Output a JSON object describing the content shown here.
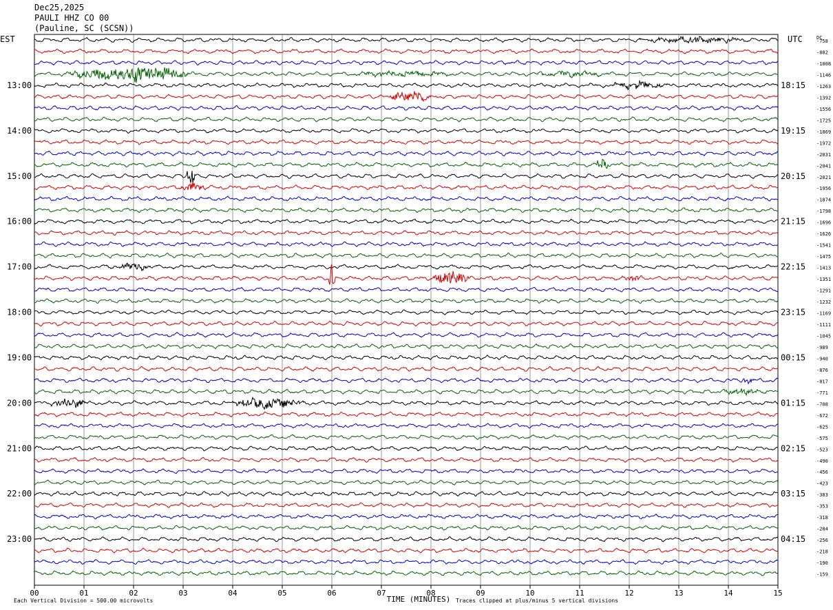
{
  "header": {
    "date": "Dec25,2025",
    "station": "PAULI HHZ CO 00",
    "location": "(Pauline, SC (SCSN))"
  },
  "colors": {
    "trace_cycle": [
      "#000000",
      "#d40000",
      "#0000c8",
      "#006400"
    ],
    "grid": "#000000",
    "background": "#ffffff"
  },
  "chart_data": {
    "type": "line",
    "title": "PAULI HHZ CO 00",
    "xlabel": "TIME (MINUTES)",
    "x_range": [
      0,
      15
    ],
    "x_ticks": [
      "00",
      "01",
      "02",
      "03",
      "04",
      "05",
      "06",
      "07",
      "08",
      "09",
      "10",
      "11",
      "12",
      "13",
      "14",
      "15"
    ],
    "left_axis_label": "EST",
    "right_axis_label": "UTC",
    "dc_label": "DC",
    "left_hour_labels": [
      "13:00",
      "14:00",
      "15:00",
      "16:00",
      "17:00",
      "18:00",
      "19:00",
      "20:00",
      "21:00",
      "22:00",
      "23:00"
    ],
    "right_hour_labels": [
      "18:15",
      "19:15",
      "20:15",
      "21:15",
      "22:15",
      "23:15",
      "00:15",
      "01:15",
      "02:15",
      "03:15",
      "04:15"
    ],
    "dc_offsets": [
      "-758",
      "-882",
      "-1008",
      "-1146",
      "-1263",
      "-1392",
      "-1556",
      "-1725",
      "-1869",
      "-1972",
      "-2031",
      "-2041",
      "-2021",
      "-1956",
      "-1874",
      "-1798",
      "-1696",
      "-1626",
      "-1541",
      "-1475",
      "-1413",
      "-1351",
      "-1291",
      "-1232",
      "-1169",
      "-1111",
      "-1045",
      "-989",
      "-940",
      "-876",
      "-817",
      "-771",
      "-708",
      "-672",
      "-625",
      "-575",
      "-523",
      "-490",
      "-456",
      "-423",
      "-383",
      "-353",
      "-318",
      "-284",
      "-256",
      "-218",
      "-190",
      "-159"
    ],
    "footer_left": "Each Vertical Division =  500.00 microvolts",
    "footer_right": "Traces clipped at plus/minus 5 vertical divisions",
    "traces_count": 48,
    "minutes_per_trace": 15,
    "events": [
      {
        "trace": 0,
        "minute": 13.3,
        "amp": 0.6,
        "dur": 1.2
      },
      {
        "trace": 3,
        "minute": 1.9,
        "amp": 1.4,
        "dur": 1.4
      },
      {
        "trace": 3,
        "minute": 2.3,
        "amp": 1.0,
        "dur": 0.8
      },
      {
        "trace": 3,
        "minute": 7.5,
        "amp": 0.5,
        "dur": 1.2
      },
      {
        "trace": 3,
        "minute": 10.8,
        "amp": 0.5,
        "dur": 0.8
      },
      {
        "trace": 4,
        "minute": 12.2,
        "amp": 0.7,
        "dur": 0.6
      },
      {
        "trace": 5,
        "minute": 7.6,
        "amp": 1.2,
        "dur": 0.5
      },
      {
        "trace": 11,
        "minute": 11.45,
        "amp": 1.6,
        "dur": 0.15
      },
      {
        "trace": 12,
        "minute": 3.15,
        "amp": 2.4,
        "dur": 0.1
      },
      {
        "trace": 13,
        "minute": 3.2,
        "amp": 1.0,
        "dur": 0.3
      },
      {
        "trace": 20,
        "minute": 1.9,
        "amp": 0.8,
        "dur": 0.5
      },
      {
        "trace": 21,
        "minute": 6.0,
        "amp": 3.0,
        "dur": 0.08
      },
      {
        "trace": 21,
        "minute": 8.4,
        "amp": 1.6,
        "dur": 0.4
      },
      {
        "trace": 21,
        "minute": 12.1,
        "amp": 0.6,
        "dur": 0.3
      },
      {
        "trace": 30,
        "minute": 14.4,
        "amp": 0.6,
        "dur": 0.15
      },
      {
        "trace": 31,
        "minute": 14.3,
        "amp": 0.6,
        "dur": 0.5
      },
      {
        "trace": 32,
        "minute": 0.7,
        "amp": 1.0,
        "dur": 0.4
      },
      {
        "trace": 32,
        "minute": 4.7,
        "amp": 1.2,
        "dur": 0.8
      }
    ]
  }
}
